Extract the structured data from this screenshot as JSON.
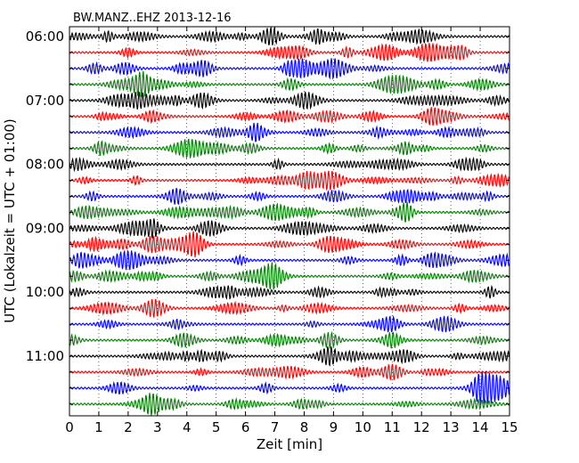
{
  "chart_data": {
    "type": "line",
    "title": "BW.MANZ..EHZ 2013-12-16",
    "xlabel": "Zeit  [min]",
    "ylabel": "UTC (Lokalzeit = UTC + 01:00)",
    "xlim": [
      0,
      15
    ],
    "x_ticks": [
      "0",
      "1",
      "2",
      "3",
      "4",
      "5",
      "6",
      "7",
      "8",
      "9",
      "10",
      "11",
      "12",
      "13",
      "14",
      "15"
    ],
    "y_tick_labels": [
      "06:00",
      "07:00",
      "08:00",
      "09:00",
      "10:00",
      "11:00"
    ],
    "rows_per_hour": 4,
    "trace_colors": [
      "#000000",
      "#ff0000",
      "#0000ff",
      "#008000"
    ],
    "grid": "vertical dotted",
    "traces": [
      {
        "start": "06:00"
      },
      {
        "start": "06:15"
      },
      {
        "start": "06:30"
      },
      {
        "start": "06:45"
      },
      {
        "start": "07:00"
      },
      {
        "start": "07:15"
      },
      {
        "start": "07:30"
      },
      {
        "start": "07:45"
      },
      {
        "start": "08:00"
      },
      {
        "start": "08:15"
      },
      {
        "start": "08:30"
      },
      {
        "start": "08:45"
      },
      {
        "start": "09:00"
      },
      {
        "start": "09:15"
      },
      {
        "start": "09:30"
      },
      {
        "start": "09:45"
      },
      {
        "start": "10:00"
      },
      {
        "start": "10:15"
      },
      {
        "start": "10:30"
      },
      {
        "start": "10:45"
      },
      {
        "start": "11:00"
      },
      {
        "start": "11:15"
      },
      {
        "start": "11:30"
      },
      {
        "start": "11:45"
      }
    ]
  }
}
